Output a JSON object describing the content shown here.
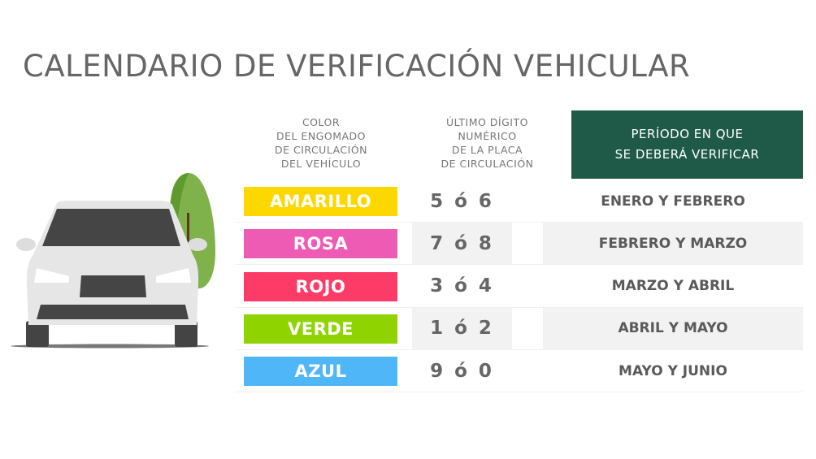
{
  "title": "CALENDARIO DE VERIFICACIÓN VEHICULAR",
  "headers": {
    "color": [
      "COLOR",
      "DEL ENGOMADO",
      "DE CIRCULACIÓN",
      "DEL VEHÍCULO"
    ],
    "digit": [
      "ÚLTIMO DÍGITO",
      "NUMÉRICO",
      "DE LA PLACA",
      "DE CIRCULACIÓN"
    ],
    "period": [
      "PERÍODO EN QUE",
      "SE DEBERÁ VERIFICAR"
    ],
    "period_bg": "#1f5a48"
  },
  "rows": [
    {
      "color": "AMARILLO",
      "hex": "#fdd700",
      "digits": "5 ó 6",
      "period": "ENERO Y FEBRERO"
    },
    {
      "color": "ROSA",
      "hex": "#ee5bb5",
      "digits": "7 ó 8",
      "period": "FEBRERO Y MARZO"
    },
    {
      "color": "ROJO",
      "hex": "#fd3b67",
      "digits": "3 ó 4",
      "period": "MARZO Y ABRIL"
    },
    {
      "color": "VERDE",
      "hex": "#8fd400",
      "digits": "1 ó 2",
      "period": "ABRIL Y MAYO"
    },
    {
      "color": "AZUL",
      "hex": "#4fb6f8",
      "digits": "9 ó 0",
      "period": "MAYO Y JUNIO"
    }
  ],
  "illustration": {
    "car-icon": "white car front view",
    "tree-icon": "green tree"
  }
}
